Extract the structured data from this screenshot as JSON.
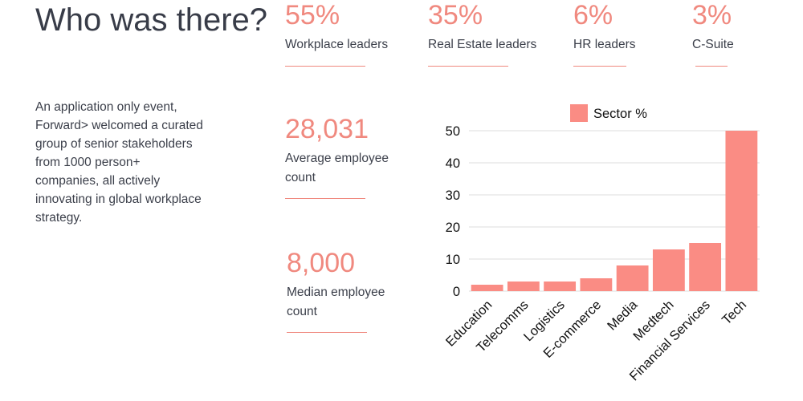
{
  "heading": "Who was there?",
  "intro": "An application only event, Forward> welcomed a curated group of senior stakeholders from 1000 person+ companies, all actively innovating in global workplace strategy.",
  "top_stats": [
    {
      "value": "55%",
      "label": "Workplace leaders"
    },
    {
      "value": "35%",
      "label": "Real Estate leaders"
    },
    {
      "value": "6%",
      "label": "HR leaders"
    },
    {
      "value": "3%",
      "label": "C-Suite"
    }
  ],
  "side_stats": [
    {
      "value": "28,031",
      "label": "Average employee count"
    },
    {
      "value": "8,000",
      "label": "Median employee count"
    }
  ],
  "colors": {
    "accent": "#f0897f",
    "bar": "#fa8c84",
    "text": "#3b3f4a",
    "grid": "#dddddd"
  },
  "chart_data": {
    "type": "bar",
    "categories": [
      "Education",
      "Telecomms",
      "Logistics",
      "E-commerce",
      "Media",
      "Medtech",
      "Financial Services",
      "Tech"
    ],
    "series": [
      {
        "name": "Sector %",
        "values": [
          2,
          3,
          3,
          4,
          8,
          13,
          15,
          50
        ]
      }
    ],
    "ylim": [
      0,
      50
    ],
    "yticks": [
      0,
      10,
      20,
      30,
      40,
      50
    ],
    "grid": true,
    "legend": "top"
  }
}
